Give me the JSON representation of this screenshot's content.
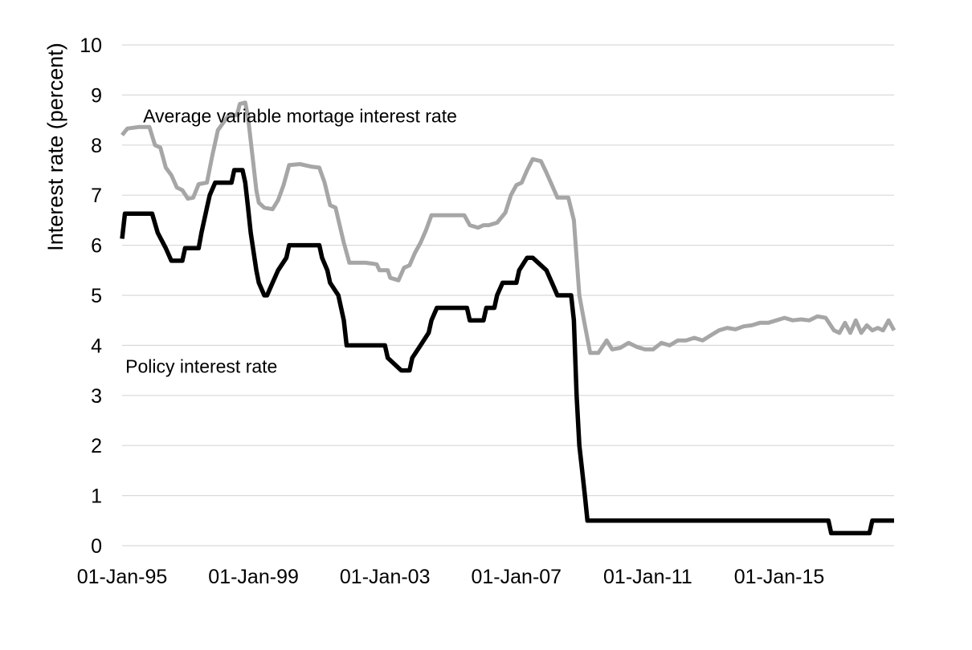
{
  "chart_data": {
    "type": "line",
    "title": "",
    "xlabel": "",
    "ylabel": "Interest rate (percent)",
    "ylim": [
      0,
      10
    ],
    "yticks": [
      "0",
      "1",
      "2",
      "3",
      "4",
      "5",
      "6",
      "7",
      "8",
      "9",
      "10"
    ],
    "xlim": [
      "1995-01-01",
      "2018-07-01"
    ],
    "xticks": [
      {
        "date": "1995-01-01",
        "label": "01-Jan-95"
      },
      {
        "date": "1999-01-01",
        "label": "01-Jan-99"
      },
      {
        "date": "2003-01-01",
        "label": "01-Jan-03"
      },
      {
        "date": "2007-01-01",
        "label": "01-Jan-07"
      },
      {
        "date": "2011-01-01",
        "label": "01-Jan-11"
      },
      {
        "date": "2015-01-01",
        "label": "01-Jan-15"
      }
    ],
    "grid": true,
    "legend": "none",
    "series": [
      {
        "name": "Average variable mortage interest rate",
        "color": "#a6a6a6",
        "points": [
          [
            "1995-01-01",
            8.2
          ],
          [
            "1995-03-01",
            8.33
          ],
          [
            "1995-07-01",
            8.36
          ],
          [
            "1995-11-01",
            8.36
          ],
          [
            "1996-01-01",
            8.0
          ],
          [
            "1996-03-01",
            7.95
          ],
          [
            "1996-05-01",
            7.55
          ],
          [
            "1996-07-01",
            7.4
          ],
          [
            "1996-09-01",
            7.15
          ],
          [
            "1996-11-01",
            7.1
          ],
          [
            "1997-01-01",
            6.93
          ],
          [
            "1997-03-01",
            6.95
          ],
          [
            "1997-05-01",
            7.22
          ],
          [
            "1997-08-01",
            7.25
          ],
          [
            "1997-10-01",
            7.8
          ],
          [
            "1997-12-01",
            8.3
          ],
          [
            "1998-02-01",
            8.45
          ],
          [
            "1998-04-01",
            8.6
          ],
          [
            "1998-07-01",
            8.6
          ],
          [
            "1998-08-01",
            8.82
          ],
          [
            "1998-10-01",
            8.85
          ],
          [
            "1998-11-01",
            8.55
          ],
          [
            "1999-01-01",
            7.6
          ],
          [
            "1999-02-01",
            7.1
          ],
          [
            "1999-03-01",
            6.85
          ],
          [
            "1999-05-01",
            6.75
          ],
          [
            "1999-08-01",
            6.72
          ],
          [
            "1999-10-01",
            6.9
          ],
          [
            "1999-12-01",
            7.2
          ],
          [
            "2000-02-01",
            7.6
          ],
          [
            "2000-06-01",
            7.62
          ],
          [
            "2000-10-01",
            7.57
          ],
          [
            "2001-01-01",
            7.55
          ],
          [
            "2001-03-01",
            7.25
          ],
          [
            "2001-05-01",
            6.8
          ],
          [
            "2001-07-01",
            6.75
          ],
          [
            "2001-10-01",
            6.05
          ],
          [
            "2001-12-01",
            5.65
          ],
          [
            "2002-06-01",
            5.65
          ],
          [
            "2002-10-01",
            5.62
          ],
          [
            "2002-11-01",
            5.5
          ],
          [
            "2003-02-01",
            5.5
          ],
          [
            "2003-03-01",
            5.35
          ],
          [
            "2003-06-01",
            5.3
          ],
          [
            "2003-08-01",
            5.55
          ],
          [
            "2003-10-01",
            5.6
          ],
          [
            "2003-12-01",
            5.85
          ],
          [
            "2004-02-01",
            6.05
          ],
          [
            "2004-04-01",
            6.3
          ],
          [
            "2004-06-01",
            6.6
          ],
          [
            "2004-10-01",
            6.6
          ],
          [
            "2005-06-01",
            6.6
          ],
          [
            "2005-08-01",
            6.4
          ],
          [
            "2005-11-01",
            6.35
          ],
          [
            "2006-01-01",
            6.4
          ],
          [
            "2006-03-01",
            6.4
          ],
          [
            "2006-06-01",
            6.45
          ],
          [
            "2006-09-01",
            6.65
          ],
          [
            "2006-11-01",
            7.0
          ],
          [
            "2007-01-01",
            7.2
          ],
          [
            "2007-03-01",
            7.25
          ],
          [
            "2007-05-01",
            7.5
          ],
          [
            "2007-07-01",
            7.72
          ],
          [
            "2007-10-01",
            7.68
          ],
          [
            "2007-12-01",
            7.45
          ],
          [
            "2008-02-01",
            7.2
          ],
          [
            "2008-04-01",
            6.95
          ],
          [
            "2008-08-01",
            6.95
          ],
          [
            "2008-10-01",
            6.5
          ],
          [
            "2008-12-01",
            5.0
          ],
          [
            "2009-02-01",
            4.4
          ],
          [
            "2009-04-01",
            3.85
          ],
          [
            "2009-07-01",
            3.85
          ],
          [
            "2009-10-01",
            4.1
          ],
          [
            "2009-12-01",
            3.92
          ],
          [
            "2010-03-01",
            3.95
          ],
          [
            "2010-06-01",
            4.05
          ],
          [
            "2010-09-01",
            3.97
          ],
          [
            "2010-12-01",
            3.92
          ],
          [
            "2011-03-01",
            3.92
          ],
          [
            "2011-06-01",
            4.05
          ],
          [
            "2011-09-01",
            4.0
          ],
          [
            "2011-12-01",
            4.1
          ],
          [
            "2012-03-01",
            4.1
          ],
          [
            "2012-06-01",
            4.15
          ],
          [
            "2012-09-01",
            4.1
          ],
          [
            "2012-12-01",
            4.2
          ],
          [
            "2013-03-01",
            4.3
          ],
          [
            "2013-06-01",
            4.35
          ],
          [
            "2013-09-01",
            4.32
          ],
          [
            "2013-12-01",
            4.38
          ],
          [
            "2014-03-01",
            4.4
          ],
          [
            "2014-06-01",
            4.45
          ],
          [
            "2014-09-01",
            4.45
          ],
          [
            "2014-12-01",
            4.5
          ],
          [
            "2015-03-01",
            4.55
          ],
          [
            "2015-06-01",
            4.5
          ],
          [
            "2015-09-01",
            4.52
          ],
          [
            "2015-12-01",
            4.5
          ],
          [
            "2016-03-01",
            4.58
          ],
          [
            "2016-06-01",
            4.55
          ],
          [
            "2016-09-01",
            4.3
          ],
          [
            "2016-11-01",
            4.25
          ],
          [
            "2017-01-01",
            4.45
          ],
          [
            "2017-03-01",
            4.25
          ],
          [
            "2017-05-01",
            4.5
          ],
          [
            "2017-07-01",
            4.25
          ],
          [
            "2017-09-01",
            4.4
          ],
          [
            "2017-11-01",
            4.3
          ],
          [
            "2018-01-01",
            4.35
          ],
          [
            "2018-03-01",
            4.3
          ],
          [
            "2018-05-01",
            4.5
          ],
          [
            "2018-07-01",
            4.3
          ]
        ]
      },
      {
        "name": "Policy interest rate",
        "color": "#000000",
        "points": [
          [
            "1995-01-01",
            6.13
          ],
          [
            "1995-02-01",
            6.63
          ],
          [
            "1995-12-01",
            6.63
          ],
          [
            "1996-02-01",
            6.25
          ],
          [
            "1996-05-01",
            5.94
          ],
          [
            "1996-07-01",
            5.69
          ],
          [
            "1996-11-01",
            5.69
          ],
          [
            "1996-12-01",
            5.94
          ],
          [
            "1997-05-01",
            5.94
          ],
          [
            "1997-06-01",
            6.25
          ],
          [
            "1997-08-01",
            6.75
          ],
          [
            "1997-09-01",
            7.0
          ],
          [
            "1997-11-01",
            7.25
          ],
          [
            "1998-05-01",
            7.25
          ],
          [
            "1998-06-01",
            7.5
          ],
          [
            "1998-09-01",
            7.5
          ],
          [
            "1998-10-01",
            7.25
          ],
          [
            "1998-11-01",
            6.75
          ],
          [
            "1998-12-01",
            6.25
          ],
          [
            "1999-02-01",
            5.5
          ],
          [
            "1999-03-01",
            5.25
          ],
          [
            "1999-05-01",
            5.0
          ],
          [
            "1999-06-01",
            5.0
          ],
          [
            "1999-08-01",
            5.25
          ],
          [
            "1999-10-01",
            5.5
          ],
          [
            "2000-01-01",
            5.75
          ],
          [
            "2000-02-01",
            6.0
          ],
          [
            "2001-01-01",
            6.0
          ],
          [
            "2001-02-01",
            5.75
          ],
          [
            "2001-04-01",
            5.5
          ],
          [
            "2001-05-01",
            5.25
          ],
          [
            "2001-08-01",
            5.0
          ],
          [
            "2001-10-01",
            4.5
          ],
          [
            "2001-11-01",
            4.0
          ],
          [
            "2003-01-01",
            4.0
          ],
          [
            "2003-02-01",
            3.75
          ],
          [
            "2003-07-01",
            3.5
          ],
          [
            "2003-10-01",
            3.5
          ],
          [
            "2003-11-01",
            3.75
          ],
          [
            "2004-02-01",
            4.0
          ],
          [
            "2004-05-01",
            4.25
          ],
          [
            "2004-06-01",
            4.5
          ],
          [
            "2004-08-01",
            4.75
          ],
          [
            "2005-07-01",
            4.75
          ],
          [
            "2005-08-01",
            4.5
          ],
          [
            "2006-01-01",
            4.5
          ],
          [
            "2006-02-01",
            4.75
          ],
          [
            "2006-05-01",
            4.75
          ],
          [
            "2006-06-01",
            5.0
          ],
          [
            "2006-08-01",
            5.25
          ],
          [
            "2007-01-01",
            5.25
          ],
          [
            "2007-02-01",
            5.5
          ],
          [
            "2007-05-01",
            5.75
          ],
          [
            "2007-07-01",
            5.75
          ],
          [
            "2007-12-01",
            5.5
          ],
          [
            "2008-02-01",
            5.25
          ],
          [
            "2008-04-01",
            5.0
          ],
          [
            "2008-09-01",
            5.0
          ],
          [
            "2008-10-01",
            4.5
          ],
          [
            "2008-11-01",
            3.0
          ],
          [
            "2008-12-01",
            2.0
          ],
          [
            "2009-01-01",
            1.5
          ],
          [
            "2009-02-01",
            1.0
          ],
          [
            "2009-03-01",
            0.5
          ],
          [
            "2016-07-01",
            0.5
          ],
          [
            "2016-08-01",
            0.25
          ],
          [
            "2017-10-01",
            0.25
          ],
          [
            "2017-11-01",
            0.5
          ],
          [
            "2018-07-01",
            0.5
          ]
        ]
      }
    ],
    "annotations": [
      {
        "text": "Average variable mortage interest rate",
        "date": "2000-06-01",
        "y": 8.45
      },
      {
        "text": "Policy interest rate",
        "date": "1997-06-01",
        "y": 3.45
      }
    ]
  }
}
